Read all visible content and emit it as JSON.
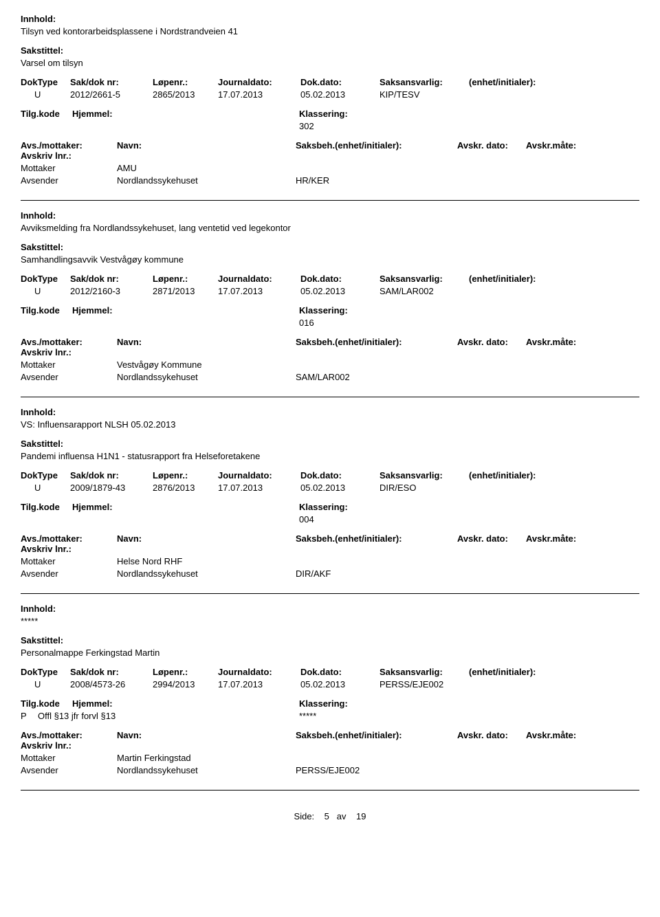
{
  "labels": {
    "innhold": "Innhold:",
    "sakstittel": "Sakstittel:",
    "doktype": "DokType",
    "sakdok": "Sak/dok nr:",
    "lopenr": "Løpenr.:",
    "journaldato": "Journaldato:",
    "dokdato": "Dok.dato:",
    "saksansvarlig": "Saksansvarlig:",
    "enhet_init": "(enhet/initialer):",
    "tilgkode": "Tilg.kode",
    "hjemmel": "Hjemmel:",
    "klassering": "Klassering:",
    "avs_mottaker": "Avs./mottaker:",
    "navn": "Navn:",
    "saksbeh": "Saksbeh.(enhet/initialer):",
    "avskr_dato": "Avskr. dato:",
    "avskr_mate": "Avskr.måte:",
    "avskriv_lnr": "Avskriv lnr.:",
    "mottaker": "Mottaker",
    "avsender": "Avsender"
  },
  "records": [
    {
      "innhold": "Tilsyn ved kontorarbeidsplassene i Nordstrandveien 41",
      "sakstittel": "Varsel om tilsyn",
      "doktype": "U",
      "sakdok": "2012/2661-5",
      "lopenr": "2865/2013",
      "journaldato": "17.07.2013",
      "dokdato": "05.02.2013",
      "saksansvarlig": "KIP/TESV",
      "tilgkode": "",
      "hjemmel": "",
      "klassering": "302",
      "parties": [
        {
          "role": "Mottaker",
          "navn": "AMU",
          "saksbeh": ""
        },
        {
          "role": "Avsender",
          "navn": "Nordlandssykehuset",
          "saksbeh": "HR/KER"
        }
      ]
    },
    {
      "innhold": "Avviksmelding fra Nordlandssykehuset, lang ventetid ved legekontor",
      "sakstittel": "Samhandlingsavvik Vestvågøy kommune",
      "doktype": "U",
      "sakdok": "2012/2160-3",
      "lopenr": "2871/2013",
      "journaldato": "17.07.2013",
      "dokdato": "05.02.2013",
      "saksansvarlig": "SAM/LAR002",
      "tilgkode": "",
      "hjemmel": "",
      "klassering": "016",
      "parties": [
        {
          "role": "Mottaker",
          "navn": "Vestvågøy Kommune",
          "saksbeh": ""
        },
        {
          "role": "Avsender",
          "navn": "Nordlandssykehuset",
          "saksbeh": "SAM/LAR002"
        }
      ]
    },
    {
      "innhold": "VS: Influensarapport NLSH 05.02.2013",
      "sakstittel": "Pandemi influensa H1N1 - statusrapport fra Helseforetakene",
      "doktype": "U",
      "sakdok": "2009/1879-43",
      "lopenr": "2876/2013",
      "journaldato": "17.07.2013",
      "dokdato": "05.02.2013",
      "saksansvarlig": "DIR/ESO",
      "tilgkode": "",
      "hjemmel": "",
      "klassering": "004",
      "parties": [
        {
          "role": "Mottaker",
          "navn": "Helse Nord RHF",
          "saksbeh": ""
        },
        {
          "role": "Avsender",
          "navn": "Nordlandssykehuset",
          "saksbeh": "DIR/AKF"
        }
      ]
    },
    {
      "innhold": "*****",
      "sakstittel": "Personalmappe Ferkingstad Martin",
      "doktype": "U",
      "sakdok": "2008/4573-26",
      "lopenr": "2994/2013",
      "journaldato": "17.07.2013",
      "dokdato": "05.02.2013",
      "saksansvarlig": "PERSS/EJE002",
      "tilgkode": "P",
      "hjemmel": "Offl §13 jfr forvl §13",
      "klassering": "*****",
      "parties": [
        {
          "role": "Mottaker",
          "navn": "Martin Ferkingstad",
          "saksbeh": ""
        },
        {
          "role": "Avsender",
          "navn": "Nordlandssykehuset",
          "saksbeh": "PERSS/EJE002"
        }
      ]
    }
  ],
  "footer": {
    "side": "Side:",
    "page": "5",
    "av": "av",
    "total": "19"
  }
}
